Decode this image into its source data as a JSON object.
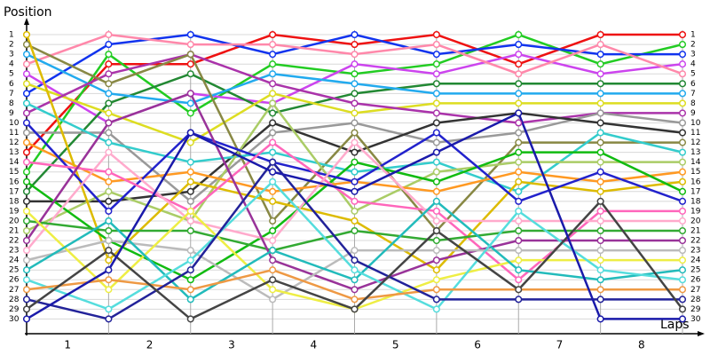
{
  "chart_data": {
    "type": "line",
    "ylabel": "Position",
    "xlabel": "Laps",
    "x": [
      0,
      1,
      2,
      3,
      4,
      5,
      6,
      7,
      8
    ],
    "xlim": [
      0,
      8.2
    ],
    "xticks": [
      1,
      2,
      3,
      4,
      5,
      6,
      7,
      8
    ],
    "ylim": [
      31.5,
      0
    ],
    "yticks": [
      1,
      2,
      3,
      4,
      5,
      6,
      7,
      8,
      9,
      10,
      11,
      12,
      13,
      14,
      15,
      16,
      17,
      18,
      19,
      20,
      21,
      22,
      23,
      24,
      25,
      26,
      27,
      28,
      29,
      30
    ],
    "grid": true,
    "series": [
      {
        "name": "1",
        "color": "#ee1111",
        "values": [
          13,
          4,
          4,
          1,
          2,
          1,
          4,
          1,
          1
        ]
      },
      {
        "name": "2",
        "color": "#22cc22",
        "values": [
          15,
          3,
          9,
          4,
          5,
          4,
          1,
          4,
          2
        ]
      },
      {
        "name": "3",
        "color": "#1133ee",
        "values": [
          7,
          2,
          1,
          3,
          1,
          3,
          2,
          3,
          3
        ]
      },
      {
        "name": "4",
        "color": "#cc44ee",
        "values": [
          5,
          10,
          7,
          8,
          4,
          5,
          3,
          5,
          4
        ]
      },
      {
        "name": "5",
        "color": "#ff88aa",
        "values": [
          4,
          1,
          2,
          2,
          3,
          2,
          5,
          2,
          5
        ]
      },
      {
        "name": "6",
        "color": "#228833",
        "values": [
          17,
          8,
          5,
          9,
          7,
          6,
          6,
          6,
          6
        ]
      },
      {
        "name": "7",
        "color": "#22aaee",
        "values": [
          3,
          7,
          8,
          5,
          6,
          7,
          7,
          7,
          7
        ]
      },
      {
        "name": "8",
        "color": "#dddd22",
        "values": [
          6,
          9,
          12,
          7,
          9,
          8,
          8,
          8,
          8
        ]
      },
      {
        "name": "9",
        "color": "#aa33aa",
        "values": [
          9,
          5,
          3,
          6,
          8,
          9,
          10,
          9,
          9
        ]
      },
      {
        "name": "10",
        "color": "#999999",
        "values": [
          11,
          11,
          18,
          11,
          10,
          12,
          11,
          9,
          10
        ]
      },
      {
        "name": "11",
        "color": "#333333",
        "values": [
          18,
          18,
          17,
          10,
          13,
          10,
          9,
          10,
          11
        ]
      },
      {
        "name": "12",
        "color": "#888844",
        "values": [
          2,
          6,
          3,
          20,
          11,
          21,
          12,
          12,
          12
        ]
      },
      {
        "name": "13",
        "color": "#33cccc",
        "values": [
          8,
          12,
          14,
          13,
          15,
          14,
          17,
          11,
          13
        ]
      },
      {
        "name": "14",
        "color": "#aacc66",
        "values": [
          21,
          17,
          20,
          8,
          19,
          15,
          14,
          14,
          14
        ]
      },
      {
        "name": "15",
        "color": "#ff9922",
        "values": [
          12,
          16,
          15,
          17,
          16,
          17,
          15,
          16,
          15
        ]
      },
      {
        "name": "16",
        "color": "#ddbb00",
        "values": [
          1,
          24,
          16,
          18,
          20,
          25,
          16,
          17,
          16
        ]
      },
      {
        "name": "17",
        "color": "#11bb11",
        "values": [
          16,
          22,
          26,
          21,
          14,
          16,
          13,
          13,
          17
        ]
      },
      {
        "name": "18",
        "color": "#2222cc",
        "values": [
          10,
          19,
          11,
          14,
          16,
          11,
          18,
          15,
          18
        ]
      },
      {
        "name": "19",
        "color": "#ff66bb",
        "values": [
          14,
          15,
          19,
          12,
          18,
          19,
          26,
          19,
          19
        ]
      },
      {
        "name": "20",
        "color": "#ffaacc",
        "values": [
          23,
          13,
          20,
          22,
          12,
          20,
          20,
          20,
          20
        ]
      },
      {
        "name": "21",
        "color": "#33aa33",
        "values": [
          20,
          21,
          21,
          23,
          21,
          22,
          21,
          21,
          21
        ]
      },
      {
        "name": "22",
        "color": "#993399",
        "values": [
          22,
          10,
          7,
          24,
          27,
          24,
          22,
          22,
          22
        ]
      },
      {
        "name": "23",
        "color": "#bbbbbb",
        "values": [
          24,
          22,
          23,
          28,
          23,
          23,
          23,
          23,
          23
        ]
      },
      {
        "name": "24",
        "color": "#eeee44",
        "values": [
          19,
          27,
          19,
          27,
          29,
          26,
          24,
          24,
          24
        ]
      },
      {
        "name": "25",
        "color": "#22bbbb",
        "values": [
          25,
          20,
          28,
          23,
          26,
          18,
          25,
          26,
          25
        ]
      },
      {
        "name": "26",
        "color": "#55dddd",
        "values": [
          26,
          29,
          24,
          16,
          25,
          29,
          19,
          25,
          26
        ]
      },
      {
        "name": "27",
        "color": "#ee9944",
        "values": [
          27,
          26,
          27,
          25,
          28,
          27,
          27,
          27,
          27
        ]
      },
      {
        "name": "28",
        "color": "#222299",
        "values": [
          28,
          30,
          25,
          14,
          24,
          28,
          28,
          28,
          28
        ]
      },
      {
        "name": "29",
        "color": "#444444",
        "values": [
          29,
          23,
          30,
          26,
          29,
          21,
          27,
          18,
          29
        ]
      },
      {
        "name": "30",
        "color": "#1a1aaa",
        "values": [
          30,
          25,
          11,
          15,
          17,
          13,
          9,
          30,
          30
        ]
      }
    ]
  }
}
